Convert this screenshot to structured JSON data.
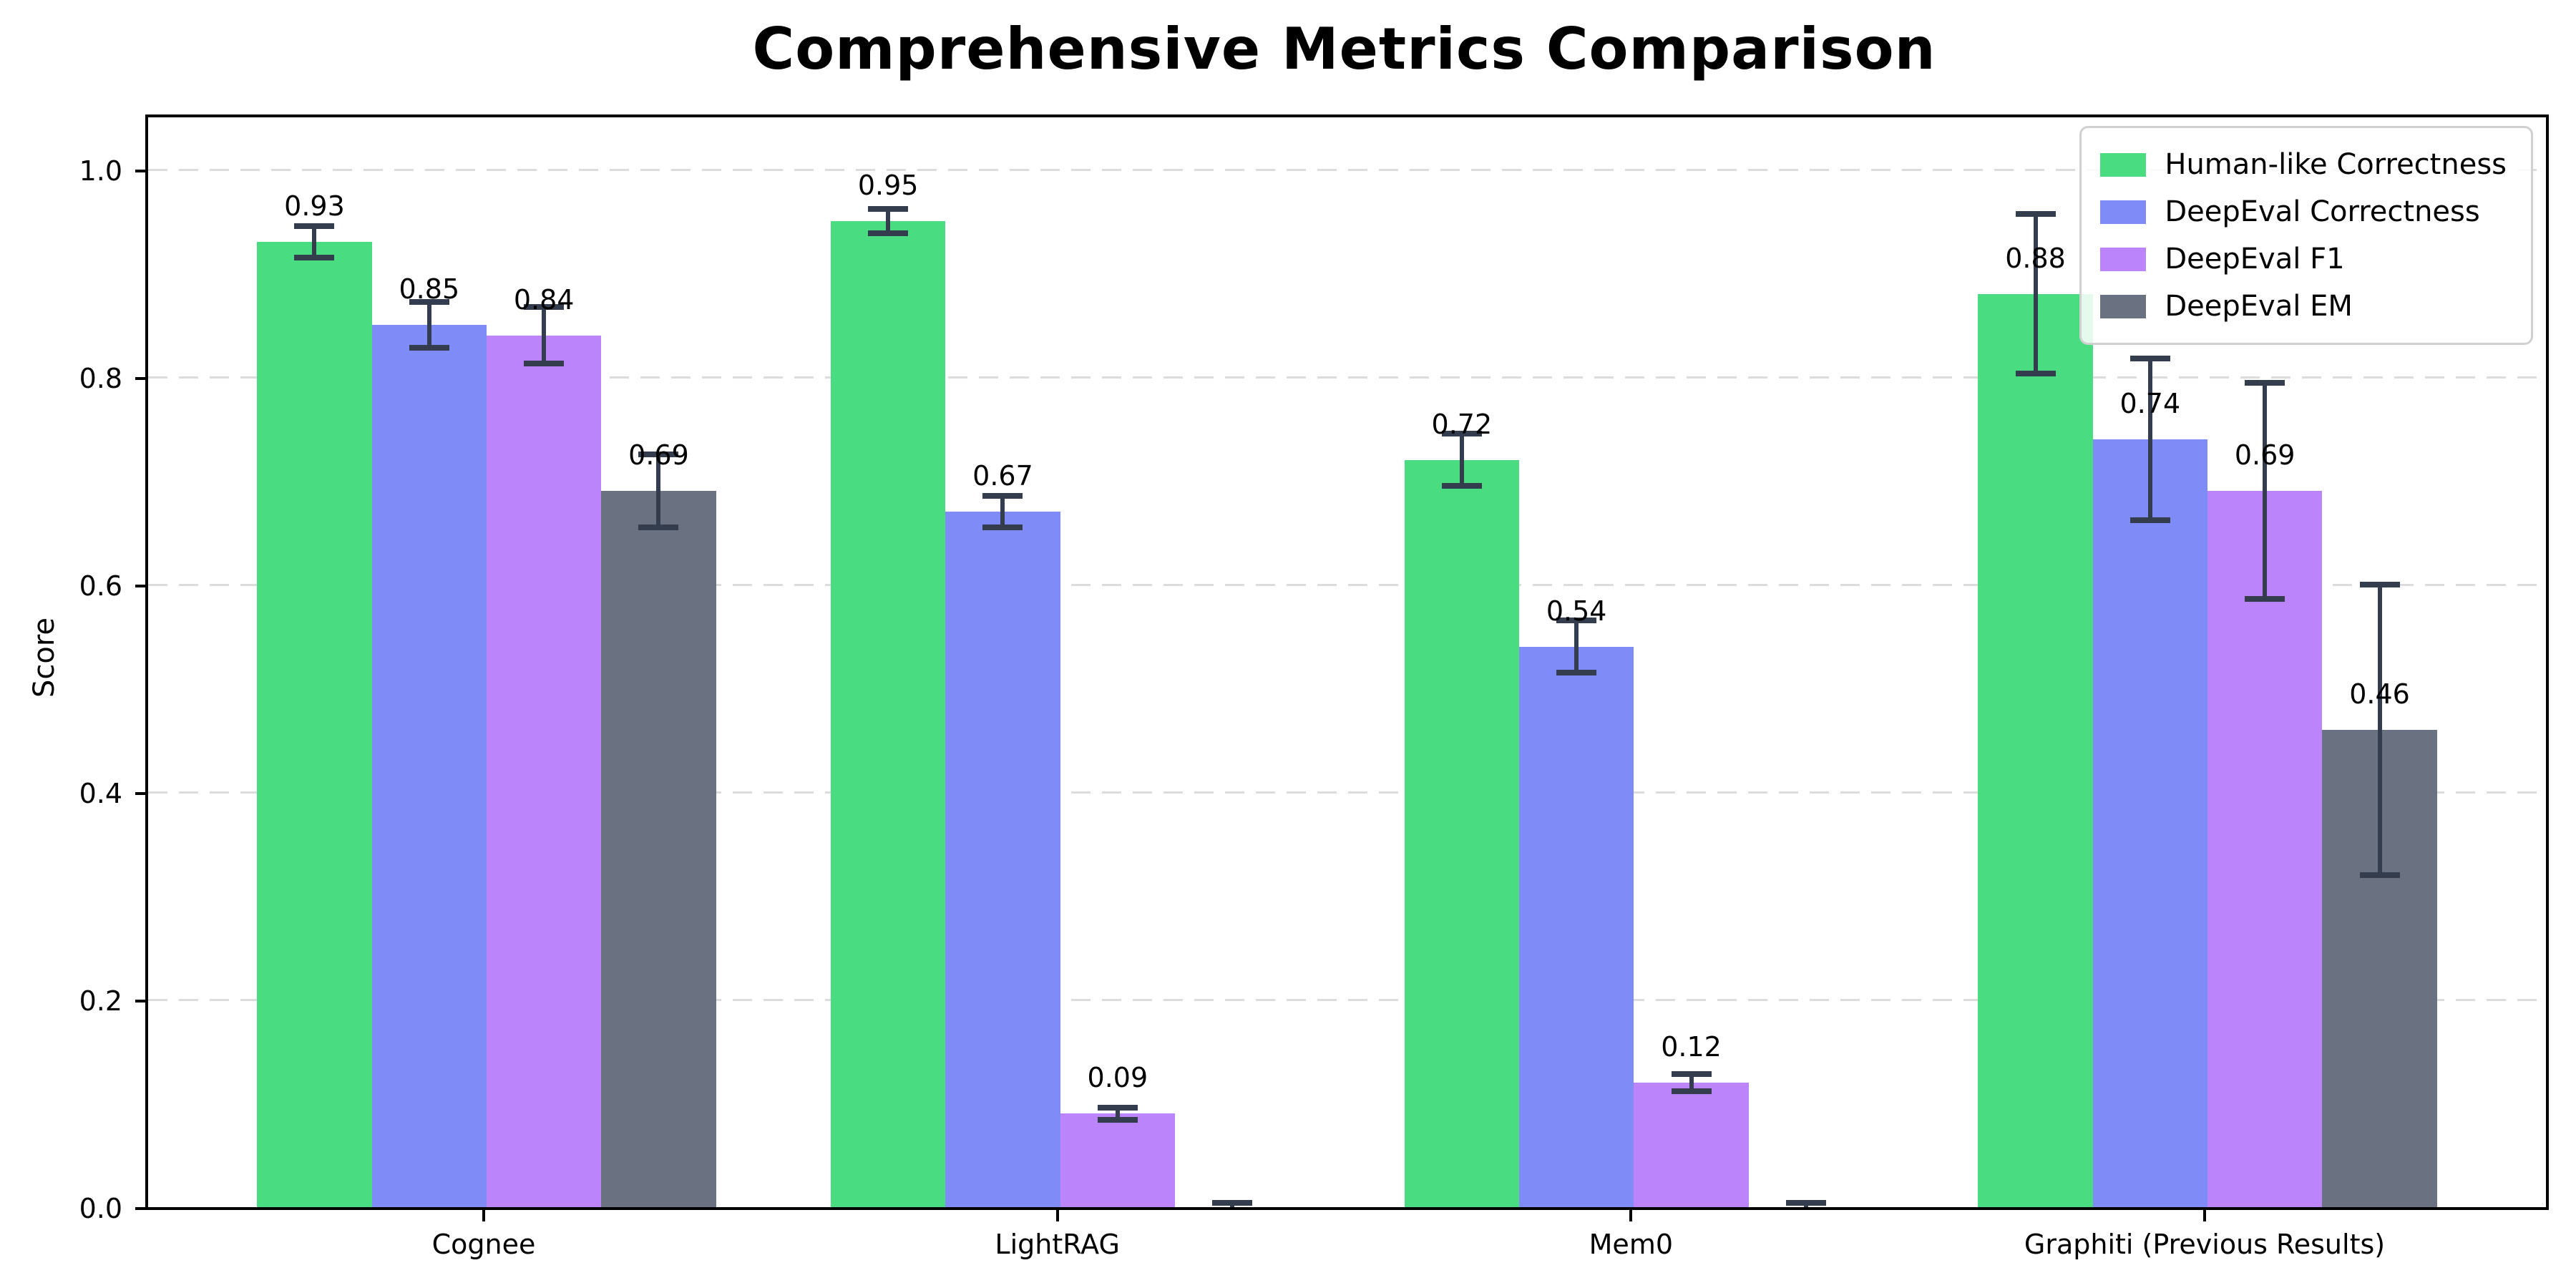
{
  "chart_data": {
    "type": "bar",
    "title": "Comprehensive Metrics Comparison",
    "xlabel": "",
    "ylabel": "Score",
    "categories": [
      "Cognee",
      "LightRAG",
      "Mem0",
      "Graphiti (Previous Results)"
    ],
    "series": [
      {
        "name": "Human-like Correctness",
        "color": "#4adc80",
        "values": [
          0.93,
          0.95,
          0.72,
          0.88
        ],
        "errors": [
          0.015,
          0.012,
          0.025,
          0.077
        ],
        "labels": [
          "0.93",
          "0.95",
          "0.72",
          "0.88"
        ]
      },
      {
        "name": "DeepEval Correctness",
        "color": "#7f8bf7",
        "values": [
          0.85,
          0.67,
          0.54,
          0.74
        ],
        "errors": [
          0.022,
          0.015,
          0.025,
          0.078
        ],
        "labels": [
          "0.85",
          "0.67",
          "0.54",
          "0.74"
        ]
      },
      {
        "name": "DeepEval F1",
        "color": "#bb84fa",
        "values": [
          0.84,
          0.09,
          0.12,
          0.69
        ],
        "errors": [
          0.027,
          0.006,
          0.008,
          0.104
        ],
        "labels": [
          "0.84",
          "0.09",
          "0.12",
          "0.69"
        ]
      },
      {
        "name": "DeepEval EM",
        "color": "#6a7180",
        "values": [
          0.69,
          0.0,
          0.0,
          0.46
        ],
        "errors": [
          0.035,
          0.004,
          0.004,
          0.14
        ],
        "labels": [
          "0.69",
          "",
          "",
          "0.46"
        ]
      }
    ],
    "yticks": [
      "0.0",
      "0.2",
      "0.4",
      "0.6",
      "0.8",
      "1.0"
    ],
    "ytick_values": [
      0.0,
      0.2,
      0.4,
      0.6,
      0.8,
      1.0
    ],
    "ylim": [
      0,
      1.05
    ],
    "grid": "horizontal-dashed",
    "legend_position": "upper right",
    "error_bar_color": "#333d4d"
  }
}
